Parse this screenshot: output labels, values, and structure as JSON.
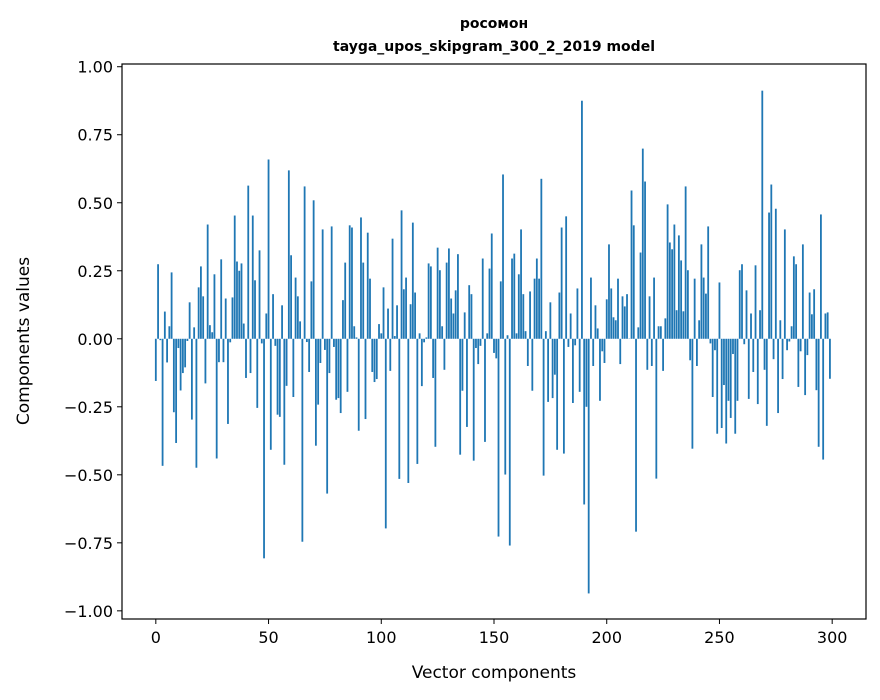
{
  "chart_data": {
    "type": "bar",
    "title": [
      "росомон",
      "tayga_upos_skipgram_300_2_2019 model"
    ],
    "xlabel": "Vector components",
    "ylabel": "Components values",
    "xlim": [
      -15,
      315
    ],
    "ylim": [
      -1.03,
      1.01
    ],
    "xticks": [
      0,
      50,
      100,
      150,
      200,
      250,
      300
    ],
    "xtick_labels": [
      "0",
      "50",
      "100",
      "150",
      "200",
      "250",
      "300"
    ],
    "yticks": [
      -1.0,
      -0.75,
      -0.5,
      -0.25,
      0.0,
      0.25,
      0.5,
      0.75,
      1.0
    ],
    "ytick_labels": [
      "−1.00",
      "−0.75",
      "−0.50",
      "−0.25",
      "0.00",
      "0.25",
      "0.50",
      "0.75",
      "1.00"
    ],
    "grid": false,
    "bar_color": "#1f77b4",
    "values": [
      -0.155,
      0.274,
      -0.005,
      -0.467,
      0.1,
      -0.087,
      0.046,
      0.244,
      -0.27,
      -0.383,
      -0.034,
      -0.19,
      -0.126,
      -0.105,
      -0.008,
      0.134,
      -0.297,
      0.042,
      -0.474,
      0.189,
      0.266,
      0.156,
      -0.164,
      0.42,
      0.05,
      0.024,
      0.237,
      -0.44,
      -0.086,
      0.292,
      -0.086,
      0.148,
      -0.313,
      -0.013,
      0.152,
      0.453,
      0.284,
      0.25,
      0.277,
      0.056,
      -0.144,
      0.563,
      -0.126,
      0.453,
      0.215,
      -0.254,
      0.325,
      -0.017,
      -0.807,
      0.093,
      0.659,
      -0.408,
      0.164,
      -0.026,
      -0.279,
      -0.287,
      0.123,
      -0.463,
      -0.173,
      0.619,
      0.307,
      -0.214,
      0.225,
      0.156,
      0.064,
      -0.746,
      0.56,
      -0.012,
      -0.122,
      0.211,
      0.509,
      -0.393,
      -0.242,
      -0.089,
      0.402,
      -0.041,
      -0.569,
      -0.126,
      0.413,
      -0.03,
      -0.224,
      -0.218,
      -0.273,
      0.142,
      0.28,
      -0.195,
      0.417,
      0.409,
      0.046,
      0.005,
      -0.338,
      0.446,
      0.28,
      -0.295,
      0.39,
      0.221,
      -0.122,
      -0.159,
      -0.148,
      0.054,
      0.02,
      0.189,
      -0.697,
      0.111,
      -0.118,
      0.368,
      0.01,
      0.123,
      -0.515,
      0.472,
      0.182,
      0.225,
      -0.53,
      0.127,
      0.427,
      0.17,
      -0.46,
      0.02,
      -0.174,
      -0.013,
      0.005,
      0.277,
      0.266,
      -0.144,
      -0.397,
      0.335,
      0.252,
      0.046,
      -0.114,
      0.28,
      0.332,
      0.148,
      0.093,
      0.178,
      0.311,
      -0.426,
      -0.191,
      0.097,
      -0.324,
      0.197,
      0.164,
      -0.448,
      -0.034,
      -0.093,
      -0.026,
      0.295,
      -0.379,
      0.02,
      0.258,
      0.387,
      -0.052,
      -0.072,
      -0.727,
      0.211,
      0.604,
      -0.499,
      0.013,
      -0.76,
      0.295,
      0.313,
      0.02,
      0.237,
      0.402,
      0.164,
      0.028,
      -0.1,
      0.174,
      -0.191,
      0.221,
      0.295,
      0.221,
      0.588,
      -0.503,
      0.028,
      -0.232,
      0.134,
      -0.218,
      -0.132,
      -0.408,
      0.17,
      0.409,
      -0.422,
      0.45,
      -0.03,
      0.093,
      -0.236,
      -0.024,
      0.185,
      -0.195,
      0.875,
      -0.609,
      -0.25,
      -0.936,
      0.225,
      -0.1,
      0.123,
      0.038,
      -0.228,
      -0.046,
      -0.089,
      0.145,
      0.347,
      0.185,
      0.079,
      0.068,
      0.221,
      -0.093,
      0.156,
      0.119,
      0.164,
      0.001,
      0.545,
      0.417,
      -0.709,
      0.042,
      0.317,
      0.699,
      0.578,
      -0.114,
      0.156,
      -0.1,
      0.225,
      -0.514,
      0.046,
      0.046,
      -0.118,
      0.075,
      0.494,
      0.354,
      0.329,
      0.42,
      0.105,
      0.38,
      0.288,
      0.101,
      0.56,
      0.252,
      -0.079,
      -0.404,
      0.221,
      -0.1,
      0.068,
      0.347,
      0.225,
      0.166,
      0.413,
      -0.017,
      -0.214,
      -0.042,
      -0.349,
      0.207,
      -0.328,
      -0.17,
      -0.385,
      -0.228,
      -0.291,
      -0.056,
      -0.349,
      -0.228,
      0.252,
      0.274,
      -0.02,
      0.178,
      -0.221,
      0.093,
      -0.122,
      0.27,
      -0.24,
      0.105,
      0.912,
      -0.114,
      -0.32,
      0.464,
      0.567,
      -0.075,
      0.478,
      -0.273,
      0.068,
      -0.148,
      0.402,
      -0.042,
      -0.01,
      0.046,
      0.303,
      0.274,
      -0.177,
      -0.046,
      0.347,
      -0.207,
      -0.06,
      0.17,
      0.09,
      0.182,
      -0.189,
      -0.397,
      0.457,
      -0.444,
      0.093,
      0.097,
      -0.147
    ]
  }
}
